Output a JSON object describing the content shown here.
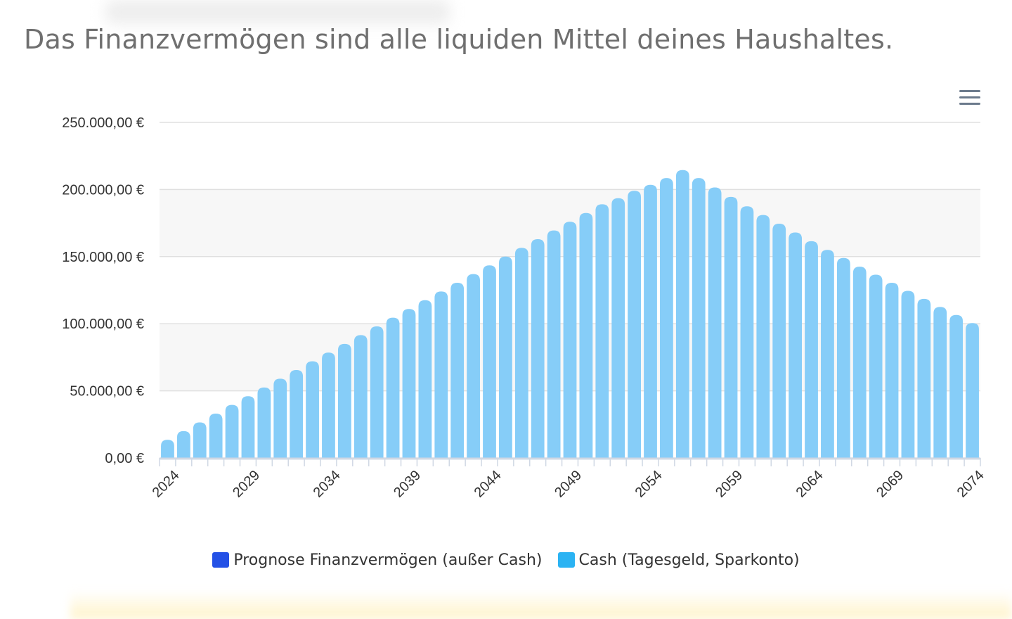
{
  "page": {
    "headline": "Das Finanzvermögen sind alle liquiden Mittel deines Haushaltes."
  },
  "colors": {
    "prognose": "#2451e6",
    "cash": "#2bb3f3",
    "cash_bar": "#86cdf8",
    "grid": "#e0e0e0",
    "band": "#f7f7f7"
  },
  "icons": {
    "menu": "hamburger-menu-icon"
  },
  "chart_data": {
    "type": "bar",
    "ylim": [
      0,
      250000
    ],
    "yticks": [
      0,
      50000,
      100000,
      150000,
      200000,
      250000
    ],
    "ytick_labels": [
      "0,00 €",
      "50.000,00 €",
      "100.000,00 €",
      "150.000,00 €",
      "200.000,00 €",
      "250.000,00 €"
    ],
    "xtick_labels": [
      "2024",
      "2029",
      "2034",
      "2039",
      "2044",
      "2049",
      "2054",
      "2059",
      "2064",
      "2069",
      "2074"
    ],
    "x": [
      2024,
      2025,
      2026,
      2027,
      2028,
      2029,
      2030,
      2031,
      2032,
      2033,
      2034,
      2035,
      2036,
      2037,
      2038,
      2039,
      2040,
      2041,
      2042,
      2043,
      2044,
      2045,
      2046,
      2047,
      2048,
      2049,
      2050,
      2051,
      2052,
      2053,
      2054,
      2055,
      2056,
      2057,
      2058,
      2059,
      2060,
      2061,
      2062,
      2063,
      2064,
      2065,
      2066,
      2067,
      2068,
      2069,
      2070,
      2071,
      2072,
      2073,
      2074
    ],
    "grid": true,
    "legend_position": "bottom",
    "series": [
      {
        "name": "Prognose Finanzvermögen (außer Cash)",
        "values": [
          0,
          0,
          0,
          0,
          0,
          0,
          0,
          0,
          0,
          0,
          0,
          0,
          0,
          0,
          0,
          0,
          0,
          0,
          0,
          0,
          0,
          0,
          0,
          0,
          0,
          0,
          0,
          0,
          0,
          0,
          0,
          0,
          0,
          0,
          0,
          0,
          0,
          0,
          0,
          0,
          0,
          0,
          0,
          0,
          0,
          0,
          0,
          0,
          0,
          0,
          0
        ]
      },
      {
        "name": "Cash (Tagesgeld, Sparkonto)",
        "values": [
          13500,
          20000,
          26500,
          33000,
          39500,
          46000,
          52500,
          59000,
          65500,
          72000,
          78500,
          85000,
          91500,
          98000,
          104500,
          111000,
          117500,
          124000,
          130500,
          137000,
          143500,
          150000,
          156500,
          163000,
          169500,
          176000,
          182500,
          189000,
          193500,
          199000,
          203500,
          208500,
          214500,
          208500,
          201500,
          194500,
          187500,
          181000,
          174500,
          168000,
          161500,
          155000,
          149000,
          142500,
          136500,
          130500,
          124500,
          118500,
          112500,
          106500,
          100500
        ]
      }
    ]
  }
}
